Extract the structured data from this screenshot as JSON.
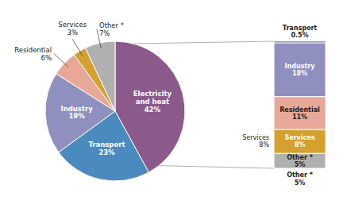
{
  "chart_data": [
    {
      "type": "pie",
      "values": [
        42,
        23,
        19,
        6,
        3,
        7
      ],
      "value_labels": [
        "Electricity\nand heat\n42%",
        "Transport\n23%",
        "Industry\n19%",
        "Residential\n6%",
        "Services\n3%",
        "Other *\n7%"
      ],
      "colors": [
        "#8b5a8b",
        "#4a8abf",
        "#9090c0",
        "#e8a898",
        "#d4a030",
        "#b0b0b0"
      ],
      "data_labels": true
    },
    {
      "type": "bar",
      "stacked": true,
      "values": [
        0.5,
        18,
        11,
        8,
        5
      ],
      "value_labels": [
        "Transport\n0.5%",
        "Industry\n18%",
        "Residential\n11%",
        "Services\n8%",
        "Other *\n5%"
      ],
      "colors": [
        "#2c3a5c",
        "#9090c0",
        "#e8a898",
        "#d4a030",
        "#b0b0b0"
      ],
      "ylim": [
        0,
        42.5
      ],
      "tick_labels": false,
      "data_labels": true,
      "annotations": [
        "Services\n8%",
        "Other *\n5%"
      ]
    }
  ]
}
